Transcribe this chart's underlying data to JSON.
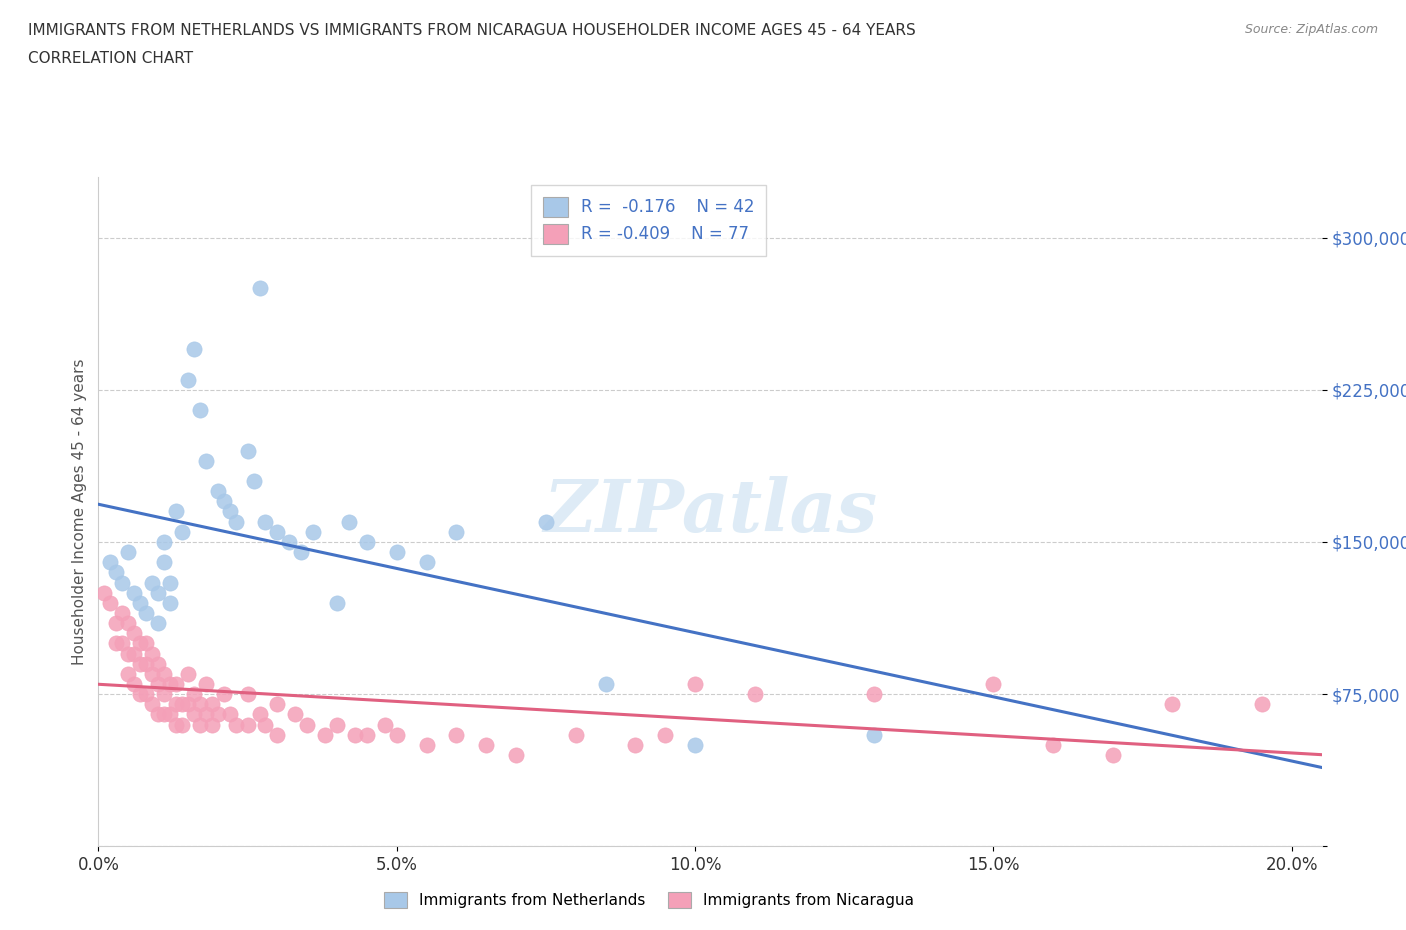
{
  "title_line1": "IMMIGRANTS FROM NETHERLANDS VS IMMIGRANTS FROM NICARAGUA HOUSEHOLDER INCOME AGES 45 - 64 YEARS",
  "title_line2": "CORRELATION CHART",
  "source": "Source: ZipAtlas.com",
  "ylabel": "Householder Income Ages 45 - 64 years",
  "xlim": [
    0.0,
    0.205
  ],
  "ylim": [
    0,
    330000
  ],
  "yticks": [
    0,
    75000,
    150000,
    225000,
    300000
  ],
  "ytick_labels": [
    "",
    "$75,000",
    "$150,000",
    "$225,000",
    "$300,000"
  ],
  "xticks": [
    0.0,
    0.05,
    0.1,
    0.15,
    0.2
  ],
  "xtick_labels": [
    "0.0%",
    "5.0%",
    "10.0%",
    "15.0%",
    "20.0%"
  ],
  "netherlands_color": "#a8c8e8",
  "nicaragua_color": "#f4a0b8",
  "netherlands_line_color": "#4472c4",
  "nicaragua_line_color": "#e06080",
  "R_netherlands": -0.176,
  "N_netherlands": 42,
  "R_nicaragua": -0.409,
  "N_nicaragua": 77,
  "watermark_text": "ZIPatlas",
  "netherlands_x": [
    0.002,
    0.003,
    0.004,
    0.005,
    0.006,
    0.007,
    0.008,
    0.009,
    0.01,
    0.01,
    0.011,
    0.011,
    0.012,
    0.012,
    0.013,
    0.014,
    0.015,
    0.016,
    0.017,
    0.018,
    0.02,
    0.021,
    0.022,
    0.023,
    0.025,
    0.026,
    0.027,
    0.028,
    0.03,
    0.032,
    0.034,
    0.036,
    0.04,
    0.042,
    0.045,
    0.05,
    0.055,
    0.06,
    0.075,
    0.085,
    0.1,
    0.13
  ],
  "netherlands_y": [
    140000,
    135000,
    130000,
    145000,
    125000,
    120000,
    115000,
    130000,
    125000,
    110000,
    150000,
    140000,
    130000,
    120000,
    165000,
    155000,
    230000,
    245000,
    215000,
    190000,
    175000,
    170000,
    165000,
    160000,
    195000,
    180000,
    275000,
    160000,
    155000,
    150000,
    145000,
    155000,
    120000,
    160000,
    150000,
    145000,
    140000,
    155000,
    160000,
    80000,
    50000,
    55000
  ],
  "nicaragua_x": [
    0.001,
    0.002,
    0.003,
    0.003,
    0.004,
    0.004,
    0.005,
    0.005,
    0.005,
    0.006,
    0.006,
    0.006,
    0.007,
    0.007,
    0.007,
    0.008,
    0.008,
    0.008,
    0.009,
    0.009,
    0.009,
    0.01,
    0.01,
    0.01,
    0.011,
    0.011,
    0.011,
    0.012,
    0.012,
    0.013,
    0.013,
    0.013,
    0.014,
    0.014,
    0.015,
    0.015,
    0.016,
    0.016,
    0.017,
    0.017,
    0.018,
    0.018,
    0.019,
    0.019,
    0.02,
    0.021,
    0.022,
    0.023,
    0.025,
    0.025,
    0.027,
    0.028,
    0.03,
    0.03,
    0.033,
    0.035,
    0.038,
    0.04,
    0.043,
    0.045,
    0.048,
    0.05,
    0.055,
    0.06,
    0.065,
    0.07,
    0.08,
    0.09,
    0.095,
    0.1,
    0.11,
    0.13,
    0.15,
    0.16,
    0.17,
    0.18,
    0.195
  ],
  "nicaragua_y": [
    125000,
    120000,
    110000,
    100000,
    115000,
    100000,
    110000,
    95000,
    85000,
    105000,
    95000,
    80000,
    100000,
    90000,
    75000,
    100000,
    90000,
    75000,
    95000,
    85000,
    70000,
    90000,
    80000,
    65000,
    85000,
    75000,
    65000,
    80000,
    65000,
    80000,
    70000,
    60000,
    70000,
    60000,
    85000,
    70000,
    75000,
    65000,
    70000,
    60000,
    80000,
    65000,
    60000,
    70000,
    65000,
    75000,
    65000,
    60000,
    75000,
    60000,
    65000,
    60000,
    70000,
    55000,
    65000,
    60000,
    55000,
    60000,
    55000,
    55000,
    60000,
    55000,
    50000,
    55000,
    50000,
    45000,
    55000,
    50000,
    55000,
    80000,
    75000,
    75000,
    80000,
    50000,
    45000,
    70000,
    70000
  ]
}
